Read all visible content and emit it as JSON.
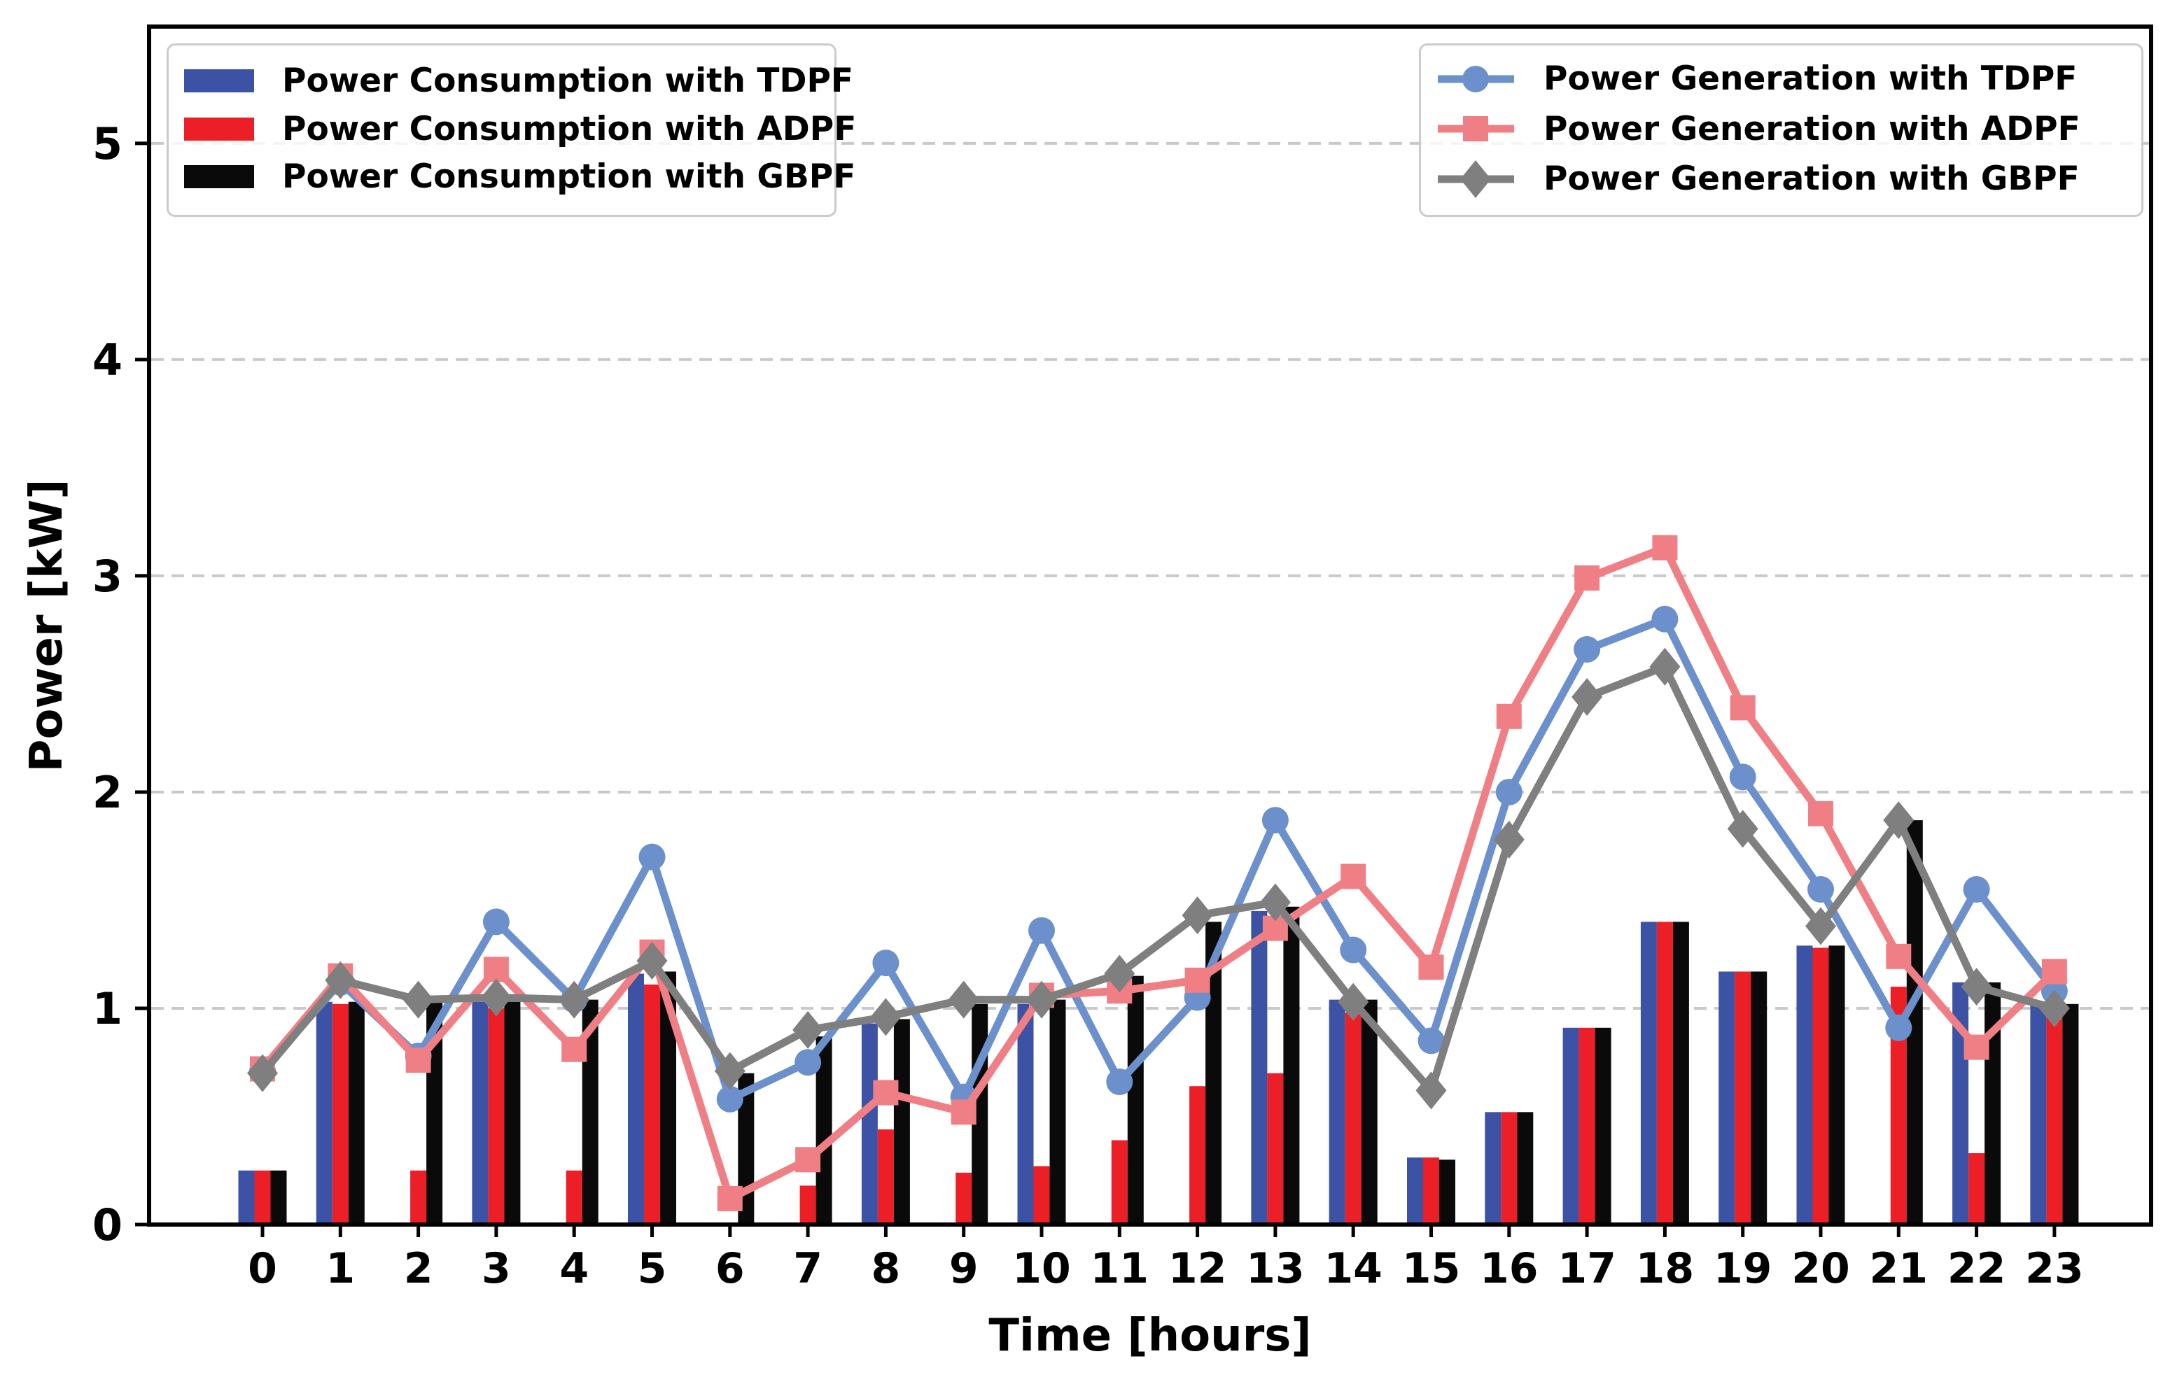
{
  "chart_data": {
    "type": "combo-bar-line",
    "title": "",
    "xlabel": "Time [hours]",
    "ylabel": "Power [kW]",
    "x": [
      0,
      1,
      2,
      3,
      4,
      5,
      6,
      7,
      8,
      9,
      10,
      11,
      12,
      13,
      14,
      15,
      16,
      17,
      18,
      19,
      20,
      21,
      22,
      23
    ],
    "xtick_labels": [
      "0",
      "1",
      "2",
      "3",
      "4",
      "5",
      "6",
      "7",
      "8",
      "9",
      "10",
      "11",
      "12",
      "13",
      "14",
      "15",
      "16",
      "17",
      "18",
      "19",
      "20",
      "21",
      "22",
      "23"
    ],
    "yticks": [
      0,
      1,
      2,
      3,
      4,
      5
    ],
    "ylim": [
      0,
      5.54
    ],
    "grid": "horizontal-dashed",
    "grid_color": "#c9c9c9",
    "bar_series": [
      {
        "name": "Power Consumption with TDPF",
        "color": "#3b52a5",
        "values": [
          0.25,
          1.03,
          0,
          1.03,
          0,
          1.16,
          0,
          0,
          0.93,
          0,
          1.02,
          0,
          0,
          1.45,
          1.04,
          0.31,
          0.52,
          0.91,
          1.4,
          1.17,
          1.29,
          0,
          1.12,
          1.02
        ]
      },
      {
        "name": "Power Consumption with ADPF",
        "color": "#ec1f27",
        "values": [
          0.25,
          1.02,
          0.25,
          1.0,
          0.25,
          1.11,
          0,
          0.18,
          0.44,
          0.24,
          0.27,
          0.39,
          0.64,
          0.7,
          0.98,
          0.31,
          0.52,
          0.91,
          1.4,
          1.17,
          1.28,
          1.1,
          0.33,
          0.99
        ]
      },
      {
        "name": "Power Consumption with GBPF",
        "color": "#0a0a0b",
        "values": [
          0.25,
          1.03,
          1.03,
          1.03,
          1.04,
          1.17,
          0.7,
          0.87,
          0.95,
          1.02,
          1.04,
          1.15,
          1.4,
          1.47,
          1.04,
          0.3,
          0.52,
          0.91,
          1.4,
          1.17,
          1.29,
          1.87,
          1.12,
          1.02
        ]
      }
    ],
    "line_series": [
      {
        "name": "Power Generation with TDPF",
        "color": "#6b90cc",
        "marker": "circle",
        "values": [
          0.71,
          1.12,
          0.78,
          1.4,
          1.04,
          1.7,
          0.58,
          0.75,
          1.21,
          0.59,
          1.36,
          0.66,
          1.05,
          1.87,
          1.27,
          0.85,
          2.0,
          2.66,
          2.8,
          2.07,
          1.55,
          0.91,
          1.55,
          1.08
        ]
      },
      {
        "name": "Power Generation with ADPF",
        "color": "#ef7f85",
        "marker": "square",
        "values": [
          0.72,
          1.15,
          0.76,
          1.18,
          0.81,
          1.26,
          0.12,
          0.3,
          0.61,
          0.52,
          1.06,
          1.08,
          1.13,
          1.37,
          1.61,
          1.19,
          2.35,
          2.99,
          3.13,
          2.39,
          1.9,
          1.24,
          0.82,
          1.17
        ]
      },
      {
        "name": "Power Generation with GBPF",
        "color": "#7f7f7f",
        "marker": "diamond",
        "values": [
          0.7,
          1.13,
          1.04,
          1.05,
          1.04,
          1.22,
          0.71,
          0.9,
          0.96,
          1.04,
          1.04,
          1.16,
          1.43,
          1.49,
          1.03,
          0.62,
          1.78,
          2.44,
          2.58,
          1.83,
          1.38,
          1.87,
          1.1,
          1.0
        ]
      }
    ],
    "legend_positions": {
      "consumption": "upper left",
      "generation": "upper right"
    }
  }
}
